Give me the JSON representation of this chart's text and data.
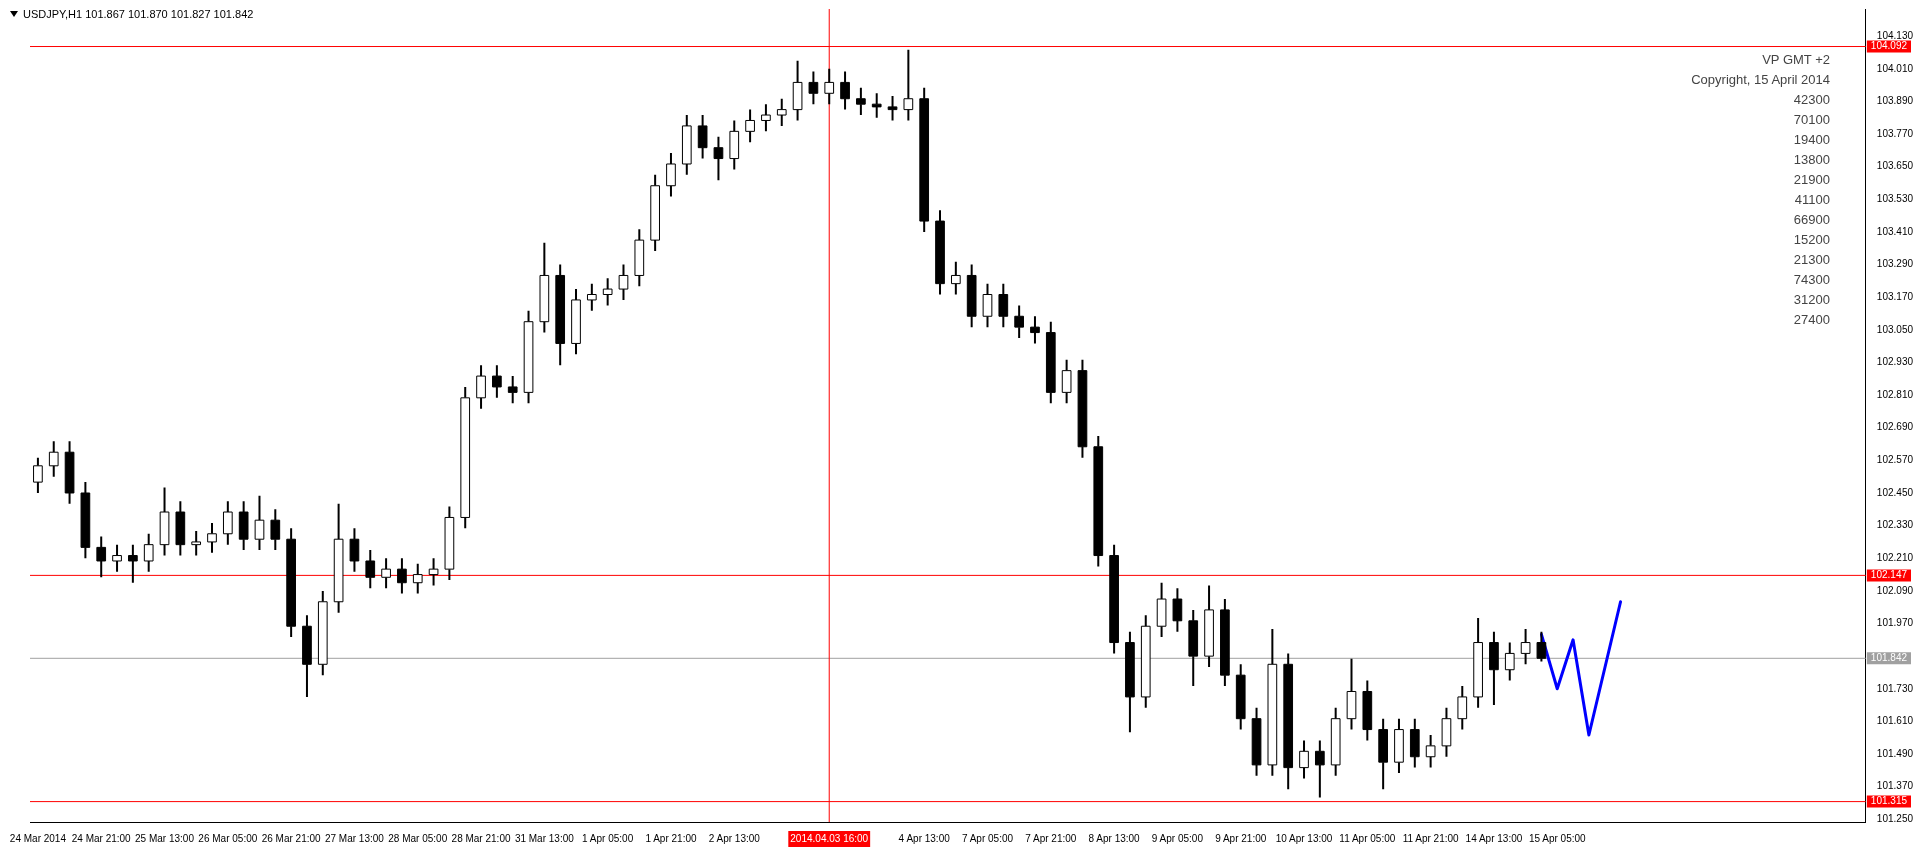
{
  "chart_data": {
    "type": "candlestick",
    "title": "USDJPY,H1  101.867 101.870 101.827 101.842",
    "annotations": [
      "VP GMT +2",
      "Copyright, 15 April 2014",
      "42300",
      "70100",
      "19400",
      "13800",
      "21900",
      "41100",
      "66900",
      "15200",
      "21300",
      "74300",
      "31200",
      "27400"
    ],
    "categories": [
      "24 Mar 2014",
      null,
      null,
      null,
      "24 Mar 21:00",
      null,
      null,
      null,
      "25 Mar 13:00",
      null,
      null,
      null,
      "26 Mar 05:00",
      null,
      null,
      null,
      "26 Mar 21:00",
      null,
      null,
      null,
      "27 Mar 13:00",
      null,
      null,
      null,
      "28 Mar 05:00",
      null,
      null,
      null,
      "28 Mar 21:00",
      null,
      null,
      null,
      "31 Mar 13:00",
      null,
      null,
      null,
      "1 Apr 05:00",
      null,
      null,
      null,
      "1 Apr 21:00",
      null,
      null,
      null,
      "2 Apr 13:00",
      null,
      null,
      null,
      null,
      null,
      "2014.04.03 16:00",
      null,
      null,
      null,
      null,
      null,
      "4 Apr 13:00",
      null,
      null,
      null,
      "7 Apr 05:00",
      null,
      null,
      null,
      "7 Apr 21:00",
      null,
      null,
      null,
      "8 Apr 13:00",
      null,
      null,
      null,
      "9 Apr 05:00",
      null,
      null,
      null,
      "9 Apr 21:00",
      null,
      null,
      null,
      "10 Apr 13:00",
      null,
      null,
      null,
      "11 Apr 05:00",
      null,
      null,
      null,
      "11 Apr 21:00",
      null,
      null,
      null,
      "14 Apr 13:00",
      null,
      null,
      null,
      "15 Apr 05:00",
      null,
      null,
      null,
      null,
      null,
      null,
      null,
      null,
      null,
      null,
      null,
      null,
      null,
      null,
      null,
      null,
      null,
      null,
      null
    ],
    "series": [
      {
        "color": "#000000",
        "colors": [
          "#ffffff",
          "#ffffff",
          "#000000",
          "#000000",
          "#000000",
          "#ffffff",
          "#000000",
          "#ffffff",
          "#ffffff",
          "#000000",
          "#ffffff",
          "#ffffff",
          "#ffffff",
          "#000000",
          "#ffffff",
          "#000000",
          "#000000",
          "#000000",
          "#ffffff",
          "#ffffff",
          "#000000",
          "#000000",
          "#ffffff",
          "#000000",
          "#ffffff",
          "#ffffff",
          "#ffffff",
          "#ffffff",
          "#ffffff",
          "#000000",
          "#000000",
          "#ffffff",
          "#ffffff",
          "#000000",
          "#ffffff",
          "#ffffff",
          "#ffffff",
          "#ffffff",
          "#ffffff",
          "#ffffff",
          "#ffffff",
          "#ffffff",
          "#000000",
          "#000000",
          "#ffffff",
          "#ffffff",
          "#ffffff",
          "#ffffff",
          "#ffffff",
          "#000000",
          "#ffffff",
          "#000000",
          "#000000",
          "#000000",
          "#000000",
          "#ffffff",
          "#000000",
          "#000000",
          "#ffffff",
          "#000000",
          "#ffffff",
          "#000000",
          "#000000",
          "#000000",
          "#000000",
          "#ffffff",
          "#000000",
          "#000000",
          "#000000",
          "#000000",
          "#ffffff",
          "#ffffff",
          "#000000",
          "#000000",
          "#ffffff",
          "#000000",
          "#000000",
          "#000000",
          "#ffffff",
          "#000000",
          "#ffffff",
          "#000000",
          "#ffffff",
          "#ffffff",
          "#000000",
          "#000000",
          "#ffffff",
          "#000000",
          "#ffffff",
          "#ffffff",
          "#ffffff",
          "#ffffff",
          "#000000",
          "#ffffff",
          "#ffffff",
          "#000000",
          null,
          null,
          null,
          null,
          null,
          null,
          null,
          null,
          null,
          null,
          null,
          null,
          null,
          null,
          null,
          null,
          null,
          null,
          null,
          null
        ],
        "ohlc": [
          [
            102.49,
            102.58,
            102.45,
            102.55
          ],
          [
            102.55,
            102.64,
            102.51,
            102.6
          ],
          [
            102.6,
            102.64,
            102.41,
            102.45
          ],
          [
            102.45,
            102.49,
            102.21,
            102.25
          ],
          [
            102.25,
            102.29,
            102.14,
            102.2
          ],
          [
            102.2,
            102.26,
            102.16,
            102.22
          ],
          [
            102.22,
            102.26,
            102.12,
            102.2
          ],
          [
            102.2,
            102.3,
            102.16,
            102.26
          ],
          [
            102.26,
            102.47,
            102.22,
            102.38
          ],
          [
            102.38,
            102.42,
            102.22,
            102.26
          ],
          [
            102.26,
            102.31,
            102.22,
            102.27
          ],
          [
            102.27,
            102.34,
            102.23,
            102.3
          ],
          [
            102.3,
            102.42,
            102.26,
            102.38
          ],
          [
            102.38,
            102.42,
            102.24,
            102.28
          ],
          [
            102.28,
            102.44,
            102.24,
            102.35
          ],
          [
            102.35,
            102.39,
            102.24,
            102.28
          ],
          [
            102.28,
            102.32,
            101.92,
            101.96
          ],
          [
            101.96,
            102.0,
            101.7,
            101.82
          ],
          [
            101.82,
            102.09,
            101.78,
            102.05
          ],
          [
            102.05,
            102.41,
            102.01,
            102.28
          ],
          [
            102.28,
            102.32,
            102.16,
            102.2
          ],
          [
            102.2,
            102.24,
            102.1,
            102.14
          ],
          [
            102.14,
            102.21,
            102.1,
            102.17
          ],
          [
            102.17,
            102.21,
            102.08,
            102.12
          ],
          [
            102.12,
            102.19,
            102.08,
            102.15
          ],
          [
            102.15,
            102.21,
            102.11,
            102.17
          ],
          [
            102.17,
            102.4,
            102.13,
            102.36
          ],
          [
            102.36,
            102.84,
            102.32,
            102.8
          ],
          [
            102.8,
            102.92,
            102.76,
            102.88
          ],
          [
            102.88,
            102.92,
            102.8,
            102.84
          ],
          [
            102.84,
            102.88,
            102.78,
            102.82
          ],
          [
            102.82,
            103.12,
            102.78,
            103.08
          ],
          [
            103.08,
            103.37,
            103.04,
            103.25
          ],
          [
            103.25,
            103.29,
            102.92,
            103.0
          ],
          [
            103.0,
            103.2,
            102.96,
            103.16
          ],
          [
            103.16,
            103.22,
            103.12,
            103.18
          ],
          [
            103.18,
            103.24,
            103.14,
            103.2
          ],
          [
            103.2,
            103.29,
            103.16,
            103.25
          ],
          [
            103.25,
            103.42,
            103.21,
            103.38
          ],
          [
            103.38,
            103.62,
            103.34,
            103.58
          ],
          [
            103.58,
            103.7,
            103.54,
            103.66
          ],
          [
            103.66,
            103.84,
            103.62,
            103.8
          ],
          [
            103.8,
            103.84,
            103.68,
            103.72
          ],
          [
            103.72,
            103.76,
            103.6,
            103.68
          ],
          [
            103.68,
            103.82,
            103.64,
            103.78
          ],
          [
            103.78,
            103.86,
            103.74,
            103.82
          ],
          [
            103.82,
            103.88,
            103.78,
            103.84
          ],
          [
            103.84,
            103.9,
            103.8,
            103.86
          ],
          [
            103.86,
            104.04,
            103.82,
            103.96
          ],
          [
            103.96,
            104.0,
            103.88,
            103.92
          ],
          [
            103.92,
            104.01,
            103.88,
            103.96
          ],
          [
            103.96,
            104.0,
            103.86,
            103.9
          ],
          [
            103.9,
            103.94,
            103.84,
            103.88
          ],
          [
            103.88,
            103.92,
            103.83,
            103.87
          ],
          [
            103.87,
            103.91,
            103.82,
            103.86
          ],
          [
            103.86,
            104.08,
            103.82,
            103.9
          ],
          [
            103.9,
            103.94,
            103.41,
            103.45
          ],
          [
            103.45,
            103.49,
            103.18,
            103.22
          ],
          [
            103.22,
            103.3,
            103.18,
            103.25
          ],
          [
            103.25,
            103.29,
            103.06,
            103.1
          ],
          [
            103.1,
            103.22,
            103.06,
            103.18
          ],
          [
            103.18,
            103.22,
            103.06,
            103.1
          ],
          [
            103.1,
            103.14,
            103.02,
            103.06
          ],
          [
            103.06,
            103.1,
            103.0,
            103.04
          ],
          [
            103.04,
            103.08,
            102.78,
            102.82
          ],
          [
            102.82,
            102.94,
            102.78,
            102.9
          ],
          [
            102.9,
            102.94,
            102.58,
            102.62
          ],
          [
            102.62,
            102.66,
            102.18,
            102.22
          ],
          [
            102.22,
            102.26,
            101.86,
            101.9
          ],
          [
            101.9,
            101.94,
            101.57,
            101.7
          ],
          [
            101.7,
            102.0,
            101.66,
            101.96
          ],
          [
            101.96,
            102.12,
            101.92,
            102.06
          ],
          [
            102.06,
            102.1,
            101.94,
            101.98
          ],
          [
            101.98,
            102.02,
            101.74,
            101.85
          ],
          [
            101.85,
            102.11,
            101.81,
            102.02
          ],
          [
            102.02,
            102.06,
            101.74,
            101.78
          ],
          [
            101.78,
            101.82,
            101.58,
            101.62
          ],
          [
            101.62,
            101.66,
            101.41,
            101.45
          ],
          [
            101.45,
            101.95,
            101.41,
            101.82
          ],
          [
            101.82,
            101.86,
            101.36,
            101.44
          ],
          [
            101.44,
            101.54,
            101.4,
            101.5
          ],
          [
            101.5,
            101.54,
            101.33,
            101.45
          ],
          [
            101.45,
            101.66,
            101.41,
            101.62
          ],
          [
            101.62,
            101.84,
            101.58,
            101.72
          ],
          [
            101.72,
            101.76,
            101.54,
            101.58
          ],
          [
            101.58,
            101.62,
            101.36,
            101.46
          ],
          [
            101.46,
            101.62,
            101.42,
            101.58
          ],
          [
            101.58,
            101.62,
            101.44,
            101.48
          ],
          [
            101.48,
            101.56,
            101.44,
            101.52
          ],
          [
            101.52,
            101.66,
            101.48,
            101.62
          ],
          [
            101.62,
            101.74,
            101.58,
            101.7
          ],
          [
            101.7,
            101.99,
            101.66,
            101.9
          ],
          [
            101.9,
            101.94,
            101.67,
            101.8
          ],
          [
            101.8,
            101.9,
            101.76,
            101.86
          ],
          [
            101.86,
            101.95,
            101.82,
            101.9
          ],
          [
            101.9,
            101.94,
            101.83,
            101.842
          ],
          null,
          null,
          null,
          null,
          null,
          null,
          null,
          null,
          null,
          null,
          null,
          null,
          null,
          null,
          null,
          null,
          null,
          null,
          null,
          null
        ]
      },
      {
        "type": "line",
        "color": "#0000ff",
        "values": [
          null,
          null,
          null,
          null,
          null,
          null,
          null,
          null,
          null,
          null,
          null,
          null,
          null,
          null,
          null,
          null,
          null,
          null,
          null,
          null,
          null,
          null,
          null,
          null,
          null,
          null,
          null,
          null,
          null,
          null,
          null,
          null,
          null,
          null,
          null,
          null,
          null,
          null,
          null,
          null,
          null,
          null,
          null,
          null,
          null,
          null,
          null,
          null,
          null,
          null,
          null,
          null,
          null,
          null,
          null,
          null,
          null,
          null,
          null,
          null,
          null,
          null,
          null,
          null,
          null,
          null,
          null,
          null,
          null,
          null,
          null,
          null,
          null,
          null,
          null,
          null,
          null,
          null,
          null,
          null,
          null,
          null,
          null,
          null,
          null,
          null,
          null,
          null,
          null,
          null,
          null,
          null,
          null,
          null,
          null,
          101.93,
          101.73,
          101.91,
          101.56,
          null,
          102.05,
          null,
          null,
          null,
          null,
          null,
          null,
          null,
          null,
          null,
          null,
          null,
          null,
          null,
          null,
          null
        ]
      }
    ],
    "ylim": [
      101.24,
      104.23
    ],
    "yticks": [
      {
        "value": 101.25,
        "label": "101.250"
      },
      {
        "value": 101.37,
        "label": "101.370"
      },
      {
        "value": 101.49,
        "label": "101.490"
      },
      {
        "value": 101.61,
        "label": "101.610"
      },
      {
        "value": 101.73,
        "label": "101.730"
      },
      {
        "value": 101.85,
        "label": null
      },
      {
        "value": 101.97,
        "label": "101.970"
      },
      {
        "value": 102.09,
        "label": "102.090"
      },
      {
        "value": 102.21,
        "label": "102.210"
      },
      {
        "value": 102.33,
        "label": "102.330"
      },
      {
        "value": 102.45,
        "label": "102.450"
      },
      {
        "value": 102.57,
        "label": "102.570"
      },
      {
        "value": 102.69,
        "label": "102.690"
      },
      {
        "value": 102.81,
        "label": "102.810"
      },
      {
        "value": 102.93,
        "label": "102.930"
      },
      {
        "value": 103.05,
        "label": "103.050"
      },
      {
        "value": 103.17,
        "label": "103.170"
      },
      {
        "value": 103.29,
        "label": "103.290"
      },
      {
        "value": 103.41,
        "label": "103.410"
      },
      {
        "value": 103.53,
        "label": "103.530"
      },
      {
        "value": 103.65,
        "label": "103.650"
      },
      {
        "value": 103.77,
        "label": "103.770"
      },
      {
        "value": 103.89,
        "label": "103.890"
      },
      {
        "value": 104.01,
        "label": "104.010"
      },
      {
        "value": 104.13,
        "label": "104.130"
      }
    ],
    "ref_lines": [
      {
        "axis": "y",
        "value": 104.092,
        "label": "104.092",
        "color": "#ff0000"
      },
      {
        "axis": "y",
        "value": 102.147,
        "label": "102.147",
        "color": "#ff0000"
      },
      {
        "axis": "y",
        "value": 101.842,
        "label": "101.842",
        "color": "#a0a0a0"
      },
      {
        "axis": "y",
        "value": 101.315,
        "label": "101.315",
        "color": "#ff0000"
      },
      {
        "axis": "x",
        "value": "2014.04.03 16:00",
        "color": "#ff0000"
      }
    ]
  }
}
